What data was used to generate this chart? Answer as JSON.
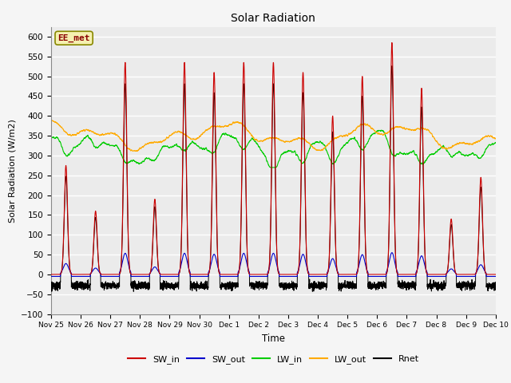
{
  "title": "Solar Radiation",
  "xlabel": "Time",
  "ylabel": "Solar Radiation (W/m2)",
  "annotation": "EE_met",
  "ylim": [
    -100,
    625
  ],
  "yticks": [
    -100,
    -50,
    0,
    50,
    100,
    150,
    200,
    250,
    300,
    350,
    400,
    450,
    500,
    550,
    600
  ],
  "colors": {
    "SW_in": "#cc0000",
    "SW_out": "#0000cc",
    "LW_in": "#00cc00",
    "LW_out": "#ffaa00",
    "Rnet": "#000000"
  },
  "bg_color": "#ebebeb",
  "grid_color": "#ffffff",
  "n_days": 15,
  "pts_per_day": 288,
  "peak_heights": [
    275,
    160,
    535,
    190,
    535,
    510,
    535,
    535,
    510,
    400,
    500,
    585,
    470,
    140,
    245
  ],
  "tick_labels": [
    "Nov 25",
    "Nov 26",
    "Nov 27",
    "Nov 28",
    "Nov 29",
    "Nov 30",
    "Dec 1",
    "Dec 2",
    "Dec 3",
    "Dec 4",
    "Dec 5",
    "Dec 6",
    "Dec 7",
    "Dec 8",
    "Dec 9",
    "Dec 10"
  ]
}
